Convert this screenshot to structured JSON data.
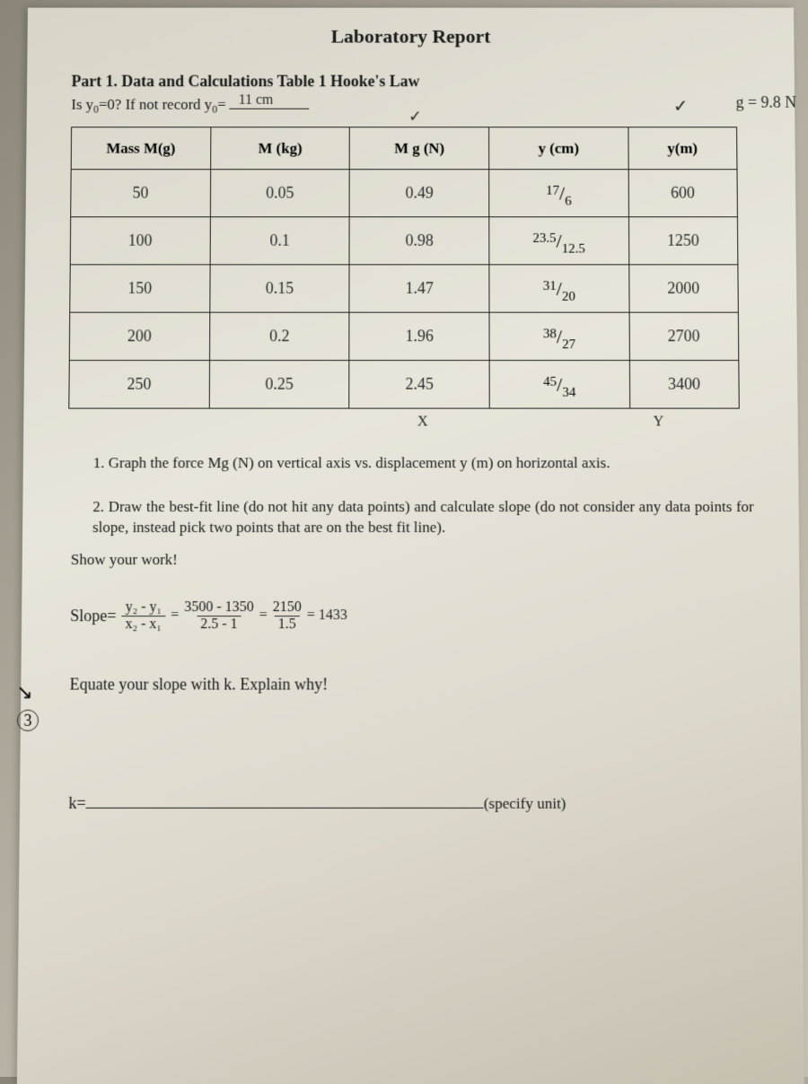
{
  "title": "Laboratory Report",
  "part_header": "Part 1. Data and Calculations Table 1  Hooke's Law",
  "question_prefix": "Is y",
  "question_sub": "0",
  "question_mid": "=0? If not record y",
  "question_sub2": "0",
  "question_suffix": "=",
  "y0_value": "11 cm",
  "g_note": "g = 9.8 N",
  "check1": "✓",
  "check2": "✓",
  "table": {
    "headers": [
      "Mass  M(g)",
      "M (kg)",
      "M g (N)",
      "y (cm)",
      "y(m)"
    ],
    "rows": [
      {
        "mass": "50",
        "kg": "0.05",
        "mg": "0.49",
        "ycm_top": "17",
        "ycm_bot": "6",
        "ym": "600"
      },
      {
        "mass": "100",
        "kg": "0.1",
        "mg": "0.98",
        "ycm_top": "23.5",
        "ycm_bot": "12.5",
        "ym": "1250"
      },
      {
        "mass": "150",
        "kg": "0.15",
        "mg": "1.47",
        "ycm_top": "31",
        "ycm_bot": "20",
        "ym": "2000"
      },
      {
        "mass": "200",
        "kg": "0.2",
        "mg": "1.96",
        "ycm_top": "38",
        "ycm_bot": "27",
        "ym": "2700"
      },
      {
        "mass": "250",
        "kg": "0.25",
        "mg": "2.45",
        "ycm_top": "45",
        "ycm_bot": "34",
        "ym": "3400"
      }
    ]
  },
  "x_mark": "X",
  "y_mark": "Y",
  "instr1": "1.   Graph the force Mg (N) on vertical axis vs. displacement y (m) on horizontal axis.",
  "instr2": "2.   Draw the best-fit line (do not hit any data points) and calculate slope (do not consider any data points for slope, instead pick two points that are on the best fit line).",
  "show_work": "Show your work!",
  "slope_label": "Slope=",
  "slope_hw_frac1_num": "y₂ - y₁",
  "slope_hw_frac1_den": "x₂ - x₁",
  "slope_eq1": "=",
  "slope_hw_frac2_num": "3500 - 1350",
  "slope_hw_frac2_den": "2.5 - 1",
  "slope_eq2": "=",
  "slope_hw_frac3_num": "2150",
  "slope_hw_frac3_den": "1.5",
  "slope_eq3": "= 1433",
  "equate": "Equate your slope with k. Explain why!",
  "circled": "3",
  "arrow": "↘",
  "k_label": "k=",
  "unit_label": "(specify unit)",
  "colors": {
    "ink": "#1a1a1a",
    "handwriting": "#2a2a2a",
    "paper_light": "#e8e5da",
    "paper_dark": "#c5bfb0",
    "bg": "#8a8578"
  }
}
